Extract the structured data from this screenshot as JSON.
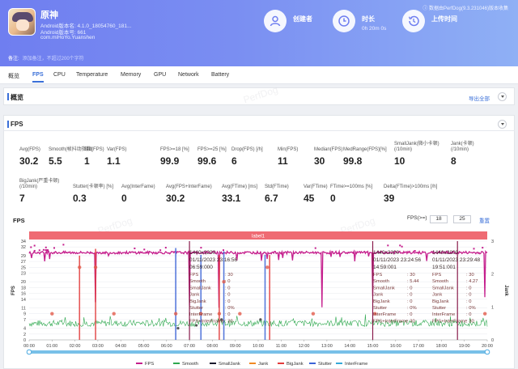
{
  "header": {
    "app_name": "原神",
    "meta_lines": [
      "Android版本名: 4.1.0_18054760_181...",
      "Android版本号: 661",
      "com.miHoYo.Yuanshen"
    ],
    "source_note": "数据由PerfDog(9.3.231046)版本收集",
    "remark_label": "备注:",
    "remark_placeholder": "添加备注，不超过200个字符",
    "stats": [
      {
        "label": "创建者",
        "value": "",
        "icon": "user-icon"
      },
      {
        "label": "时长",
        "value": "0h 20m 0s",
        "icon": "clock-icon"
      },
      {
        "label": "上传时间",
        "value": "",
        "icon": "history-icon"
      }
    ]
  },
  "tabs": [
    "概览",
    "FPS",
    "CPU",
    "Temperature",
    "Memory",
    "GPU",
    "Network",
    "Battery"
  ],
  "active_tab": "FPS",
  "overview": {
    "title": "概览",
    "export_label": "导出全部"
  },
  "fps_section": {
    "title": "FPS"
  },
  "metrics_row1": [
    {
      "label": "Avg(FPS)",
      "value": "30.2"
    },
    {
      "label": "Smooth(帧抖动指数)",
      "value": "5.5"
    },
    {
      "label": "Std(FPS)",
      "value": "1"
    },
    {
      "label": "Var(FPS)",
      "value": "1.1"
    },
    {
      "label": "FPS>=18 [%]",
      "value": "99.9"
    },
    {
      "label": "FPS>=25 [%]",
      "value": "99.6"
    },
    {
      "label": "Drop(FPS) [/h]",
      "value": "6"
    },
    {
      "label": "Min(FPS)",
      "value": "11"
    },
    {
      "label": "Median(FPS)",
      "value": "30"
    },
    {
      "label": "MedRange(FPS)[%]",
      "value": "99.8"
    },
    {
      "label": "SmallJank(微小卡顿)\n(/10min)",
      "value": "10"
    },
    {
      "label": "Jank(卡顿)\n(/10min)",
      "value": "8"
    }
  ],
  "metrics_row2": [
    {
      "label": "BigJank(严重卡顿)\n(/10min)",
      "value": "7"
    },
    {
      "label": "Stutter(卡顿率) [%]",
      "value": "0.3"
    },
    {
      "label": "Avg(InterFame)",
      "value": "0"
    },
    {
      "label": "Avg(FPS+InterFame)",
      "value": "30.2"
    },
    {
      "label": "Avg(FTime) [ms]",
      "value": "33.1"
    },
    {
      "label": "Std(FTime)",
      "value": "6.7"
    },
    {
      "label": "Var(FTime)",
      "value": "45"
    },
    {
      "label": "FTime>=100ms [%]",
      "value": "0"
    },
    {
      "label": "Delta(FTime)>100ms [/h]",
      "value": "39"
    }
  ],
  "chart": {
    "title": "FPS",
    "filter_label": "FPS(>=)",
    "filter_values": [
      "18",
      "25"
    ],
    "reset_label": "重置",
    "label_bar": "label1",
    "y_left_label": "FPS",
    "y_right_label": "Jank",
    "watermark": "PerfDog"
  },
  "chart_data": {
    "type": "line",
    "title": "FPS",
    "ylabel": "FPS",
    "y2label": "Jank",
    "ylim": [
      0,
      34
    ],
    "y_ticks": [
      0,
      2,
      4,
      7,
      9,
      11,
      14,
      16,
      18,
      20,
      23,
      25,
      27,
      29,
      32,
      34
    ],
    "y2lim": [
      0,
      3
    ],
    "y2_ticks": [
      0,
      1,
      2,
      3
    ],
    "x_ticks": [
      "00:00",
      "01:00",
      "02:00",
      "03:00",
      "04:00",
      "05:00",
      "06:00",
      "07:00",
      "08:00",
      "09:00",
      "10:00",
      "11:00",
      "12:00",
      "13:00",
      "14:00",
      "15:00",
      "16:00",
      "17:00",
      "18:00",
      "19:00",
      "20:00"
    ],
    "series": [
      {
        "name": "FPS",
        "color": "#c51f8d",
        "base": 30
      },
      {
        "name": "Smooth",
        "color": "#2ea84f",
        "base": 5.5
      },
      {
        "name": "SmallJank",
        "color": "#1a1a2e"
      },
      {
        "name": "Jank",
        "color": "#f08a24"
      },
      {
        "name": "BigJank",
        "color": "#e23b3b"
      },
      {
        "name": "Stutter",
        "color": "#3b63d6"
      },
      {
        "name": "InterFrame",
        "color": "#35a8d8"
      }
    ],
    "tooltips": [
      {
        "header": "1440x3200",
        "date": "01/11/2023 23:16:56",
        "time": "06:59:000",
        "rows": [
          [
            "FPS",
            ": 30"
          ],
          [
            "Smooth",
            ": 0"
          ],
          [
            "SmallJank",
            ": 0"
          ],
          [
            "Jank",
            ": 0"
          ],
          [
            "BigJank",
            ": 0"
          ],
          [
            "Stutter",
            ": 0%"
          ],
          [
            "InterFrame",
            ": 0"
          ],
          [
            "FPS+InterFrame",
            ": 30"
          ]
        ]
      },
      {
        "header": "1440x3200",
        "date": "01/11/2023 23:24:56",
        "time": "14:59:001",
        "rows": [
          [
            "FPS",
            ": 30"
          ],
          [
            "Smooth",
            ": 5.44"
          ],
          [
            "SmallJank",
            ": 0"
          ],
          [
            "Jank",
            ": 0"
          ],
          [
            "BigJank",
            ": 0"
          ],
          [
            "Stutter",
            ": 0%"
          ],
          [
            "InterFrame",
            ": 0"
          ],
          [
            "FPS+InterFrame",
            ": 30"
          ]
        ]
      },
      {
        "header": "1440x3200",
        "date": "01/11/2023 23:29:48",
        "time": "19:51:001",
        "rows": [
          [
            "FPS",
            ": 30"
          ],
          [
            "Smooth",
            ": 4.27"
          ],
          [
            "SmallJank",
            ": 0"
          ],
          [
            "Jank",
            ": 0"
          ],
          [
            "BigJank",
            ": 0"
          ],
          [
            "Stutter",
            ": 0%"
          ],
          [
            "InterFrame",
            ": 0"
          ],
          [
            "FPS+InterFrame",
            ": 30"
          ]
        ]
      }
    ]
  }
}
